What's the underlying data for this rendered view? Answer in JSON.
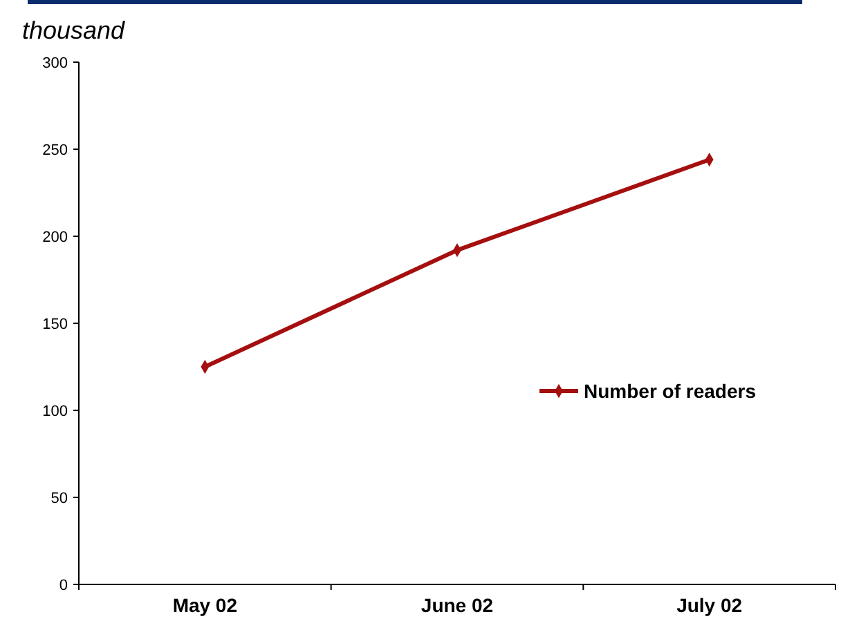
{
  "chart_data": {
    "type": "line",
    "ylabel": "thousand",
    "categories": [
      "May 02",
      "June 02",
      "July 02"
    ],
    "series": [
      {
        "name": "Number of readers",
        "color": "#a50f0f",
        "values": [
          125,
          192,
          244
        ]
      }
    ],
    "ylim": [
      0,
      300
    ],
    "yticks": [
      0,
      50,
      100,
      150,
      200,
      250,
      300
    ],
    "marker": "diamond",
    "legend": "right",
    "grid": false
  }
}
